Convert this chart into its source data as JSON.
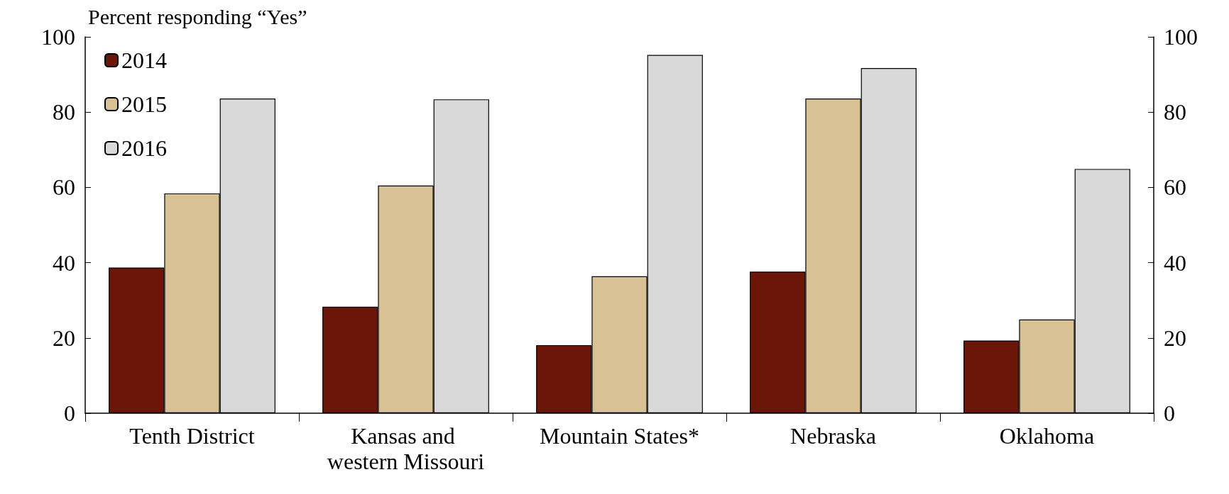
{
  "chart_data": {
    "type": "bar",
    "ylabel": "Percent responding “Yes”",
    "categories": [
      "Tenth District",
      "Kansas and western Missouri",
      "Mountain States*",
      "Nebraska",
      "Oklahoma"
    ],
    "series": [
      {
        "name": "2014",
        "color": "#6b1608",
        "values": [
          38.7,
          28.3,
          18.1,
          37.6,
          19.3
        ]
      },
      {
        "name": "2015",
        "color": "#d8c295",
        "values": [
          58.4,
          60.5,
          36.4,
          83.6,
          24.9
        ]
      },
      {
        "name": "2016",
        "color": "#d9d9d9",
        "values": [
          83.6,
          83.4,
          95.2,
          91.7,
          64.9
        ]
      }
    ],
    "ylim": [
      0,
      100
    ],
    "yticks": [
      0,
      20,
      40,
      60,
      80,
      100
    ],
    "y2lim": [
      0,
      100
    ],
    "y2ticks": [
      0,
      20,
      40,
      60,
      80,
      100
    ],
    "grid": false,
    "legend": "top left"
  }
}
